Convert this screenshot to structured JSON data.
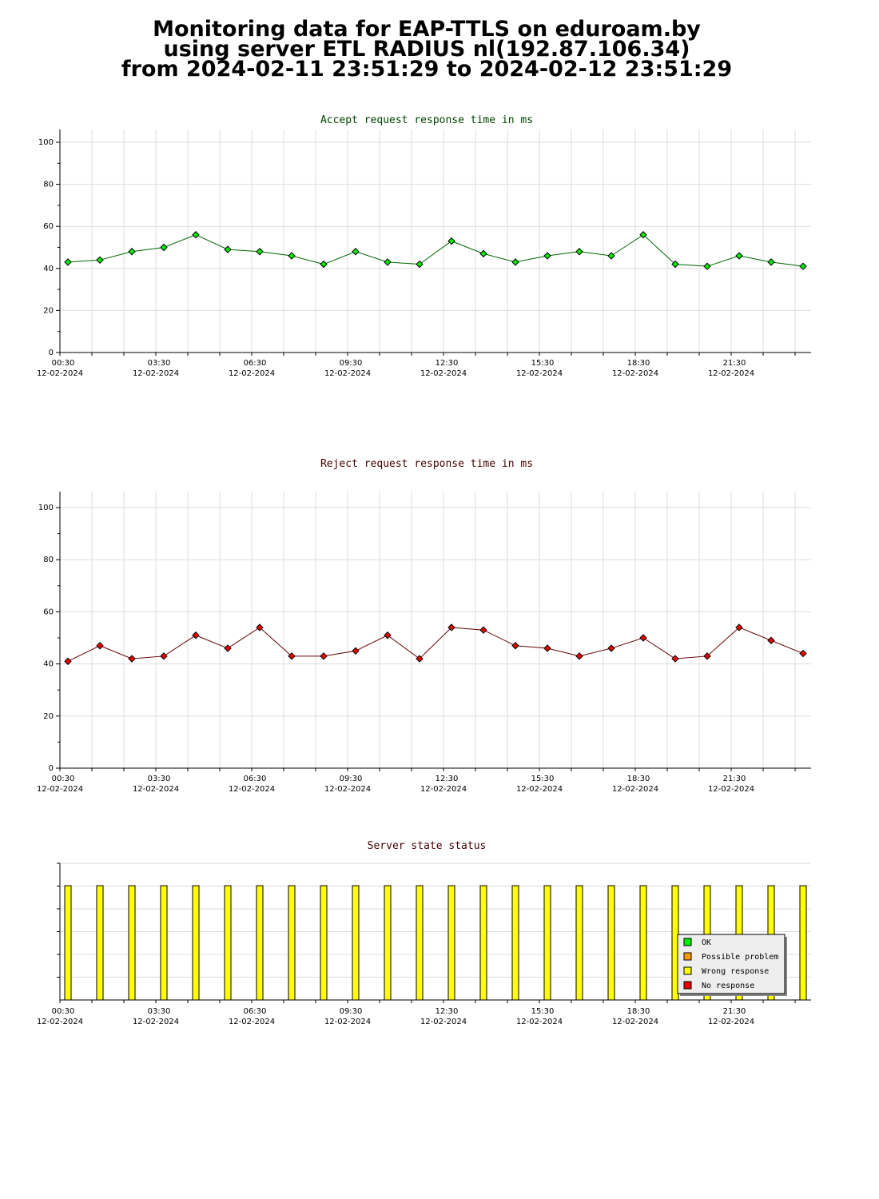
{
  "page": {
    "title_line1": "Monitoring data for EAP-TTLS on eduroam.by",
    "title_line2": "using server ETL RADIUS nl(192.87.106.34)",
    "title_line3": "from 2024-02-11 23:51:29 to 2024-02-12 23:51:29"
  },
  "colors": {
    "accept_title": "#004400",
    "reject_title": "#440000",
    "status_title": "#440000",
    "accept_line": "#006600",
    "accept_point": "#00ee00",
    "reject_line": "#660000",
    "reject_point": "#ee0000",
    "grid": "#dddddd",
    "bar": "#ffff00"
  },
  "x_axis": {
    "time_labels": [
      "00:30",
      "03:30",
      "06:30",
      "09:30",
      "12:30",
      "15:30",
      "18:30",
      "21:30"
    ],
    "date_label": "12-02-2024"
  },
  "chart_data": [
    {
      "id": "accept",
      "type": "line",
      "title": "Accept request response time in ms",
      "ylim": [
        0,
        106
      ],
      "yticks": [
        0,
        20,
        40,
        60,
        80,
        100
      ],
      "series": [
        {
          "values": [
            43,
            44,
            48,
            50,
            56,
            49,
            48,
            46,
            42,
            48,
            43,
            42,
            53,
            47,
            43,
            46,
            48,
            46,
            56,
            42,
            41,
            46,
            43,
            41
          ]
        }
      ],
      "grid": true
    },
    {
      "id": "reject",
      "type": "line",
      "title": "Reject request response time in ms",
      "ylim": [
        0,
        106
      ],
      "yticks": [
        0,
        20,
        40,
        60,
        80,
        100
      ],
      "series": [
        {
          "values": [
            41,
            47,
            42,
            43,
            51,
            46,
            54,
            43,
            43,
            45,
            51,
            42,
            54,
            53,
            47,
            46,
            43,
            46,
            50,
            42,
            43,
            54,
            49,
            44
          ]
        }
      ],
      "grid": true
    },
    {
      "id": "status",
      "type": "bar",
      "title": "Server state status",
      "legend": [
        "OK",
        "Possible problem",
        "Wrong response",
        "No response"
      ],
      "legend_colors": [
        "#00ee00",
        "#ff9900",
        "#ffff00",
        "#ee0000"
      ],
      "legend_position": "bottom-right",
      "series": [
        {
          "values": [
            "Wrong response",
            "Wrong response",
            "Wrong response",
            "Wrong response",
            "Wrong response",
            "Wrong response",
            "Wrong response",
            "Wrong response",
            "Wrong response",
            "Wrong response",
            "Wrong response",
            "Wrong response",
            "Wrong response",
            "Wrong response",
            "Wrong response",
            "Wrong response",
            "Wrong response",
            "Wrong response",
            "Wrong response",
            "Wrong response",
            "Wrong response",
            "Wrong response",
            "Wrong response",
            "Wrong response"
          ]
        }
      ]
    }
  ]
}
